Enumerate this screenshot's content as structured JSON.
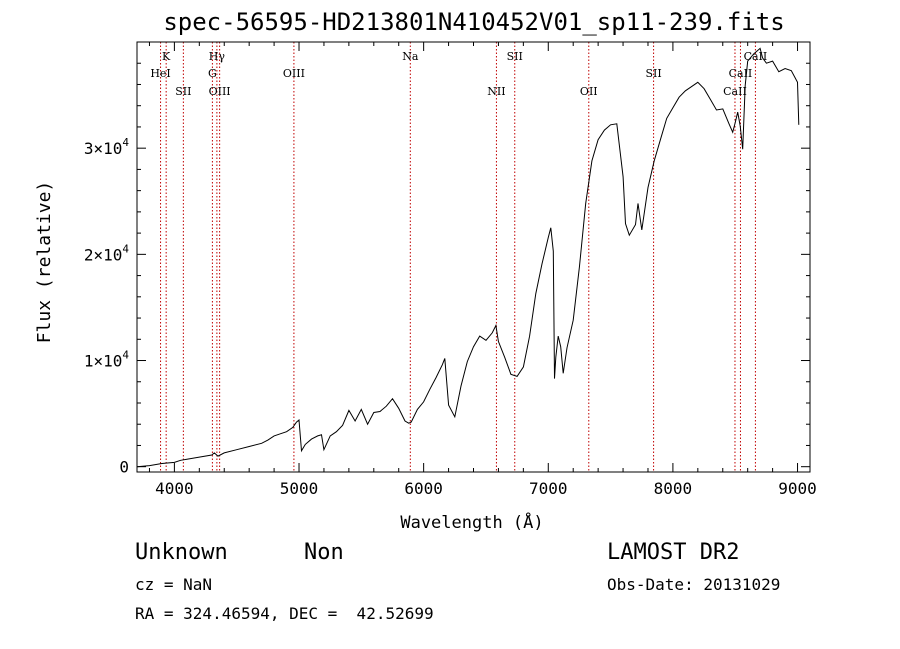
{
  "title": "spec-56595-HD213801N410452V01_sp11-239.fits",
  "info": {
    "classification": "Unknown",
    "subclass": "Non",
    "survey": "LAMOST DR2",
    "cz": "cz = NaN",
    "obs_date": "Obs-Date: 20131029",
    "coords": "RA = 324.46594, DEC =  42.52699"
  },
  "colors": {
    "spectrum": "#000000",
    "line_markers": "#c00000"
  },
  "chart_data": {
    "type": "line",
    "xlabel": "Wavelength (Å)",
    "ylabel": "Flux (relative)",
    "xlim": [
      3700,
      9100
    ],
    "ylim": [
      -500,
      40000
    ],
    "xticks": [
      4000,
      5000,
      6000,
      7000,
      8000,
      9000
    ],
    "xtick_labels": [
      "4000",
      "5000",
      "6000",
      "7000",
      "8000",
      "9000"
    ],
    "yticks": [
      0,
      10000,
      20000,
      30000
    ],
    "ytick_labels": [
      {
        "base": "0",
        "exp": ""
      },
      {
        "base": "1×10",
        "exp": "4"
      },
      {
        "base": "2×10",
        "exp": "4"
      },
      {
        "base": "3×10",
        "exp": "4"
      }
    ],
    "lines": [
      {
        "label": "K",
        "wl": 3934,
        "tier": 0
      },
      {
        "label": "HeI",
        "wl": 3889,
        "tier": 1
      },
      {
        "label": "SII",
        "wl": 4072,
        "tier": 2
      },
      {
        "label": "Hγ",
        "wl": 4341,
        "tier": 0
      },
      {
        "label": "G",
        "wl": 4305,
        "tier": 1
      },
      {
        "label": "OIII",
        "wl": 4363,
        "tier": 2
      },
      {
        "label": "OIII",
        "wl": 4959,
        "tier": 1
      },
      {
        "label": "Na",
        "wl": 5893,
        "tier": 0
      },
      {
        "label": "NII",
        "wl": 6584,
        "tier": 2
      },
      {
        "label": "SII",
        "wl": 6731,
        "tier": 0
      },
      {
        "label": "OII",
        "wl": 7325,
        "tier": 2
      },
      {
        "label": "SII",
        "wl": 7845,
        "tier": 1
      },
      {
        "label": "CaII",
        "wl": 8662,
        "tier": 0
      },
      {
        "label": "CaII",
        "wl": 8542,
        "tier": 1
      },
      {
        "label": "CaII",
        "wl": 8498,
        "tier": 2
      }
    ],
    "spectrum": {
      "x": [
        3700,
        3800,
        3900,
        4000,
        4050,
        4100,
        4200,
        4300,
        4320,
        4350,
        4400,
        4500,
        4600,
        4700,
        4750,
        4800,
        4850,
        4900,
        4950,
        4980,
        5000,
        5020,
        5050,
        5100,
        5150,
        5180,
        5200,
        5250,
        5300,
        5350,
        5400,
        5450,
        5500,
        5550,
        5600,
        5650,
        5700,
        5750,
        5800,
        5850,
        5880,
        5900,
        5950,
        6000,
        6050,
        6100,
        6150,
        6170,
        6200,
        6250,
        6300,
        6350,
        6400,
        6450,
        6500,
        6550,
        6580,
        6600,
        6650,
        6700,
        6750,
        6800,
        6850,
        6900,
        6950,
        7000,
        7020,
        7040,
        7050,
        7060,
        7080,
        7100,
        7120,
        7150,
        7200,
        7250,
        7300,
        7350,
        7400,
        7450,
        7500,
        7550,
        7600,
        7620,
        7650,
        7700,
        7720,
        7750,
        7800,
        7850,
        7900,
        7950,
        8000,
        8050,
        8100,
        8150,
        8200,
        8250,
        8300,
        8350,
        8400,
        8450,
        8480,
        8500,
        8520,
        8540,
        8560,
        8580,
        8600,
        8650,
        8700,
        8720,
        8750,
        8800,
        8850,
        8900,
        8950,
        9000,
        9010
      ],
      "y": [
        0,
        100,
        300,
        400,
        600,
        700,
        900,
        1100,
        1300,
        1000,
        1300,
        1600,
        1900,
        2200,
        2500,
        2900,
        3100,
        3300,
        3700,
        4200,
        4400,
        1500,
        2100,
        2600,
        2900,
        3000,
        1600,
        2900,
        3300,
        3900,
        5300,
        4300,
        5400,
        4000,
        5100,
        5200,
        5700,
        6400,
        5500,
        4300,
        4100,
        4200,
        5400,
        6100,
        7300,
        8400,
        9600,
        10200,
        5800,
        4700,
        7600,
        9900,
        11300,
        12300,
        11900,
        12600,
        13300,
        11800,
        10300,
        8700,
        8500,
        9400,
        12300,
        16300,
        19100,
        21600,
        22500,
        20300,
        8300,
        10300,
        12300,
        11300,
        8800,
        11200,
        13800,
        18800,
        24800,
        28800,
        30800,
        31700,
        32200,
        32300,
        27300,
        22900,
        21800,
        22800,
        24800,
        22300,
        26300,
        28800,
        30800,
        32800,
        33800,
        34800,
        35400,
        35800,
        36200,
        35600,
        34600,
        33600,
        33700,
        32300,
        31500,
        32400,
        33400,
        32100,
        29900,
        35900,
        38200,
        38900,
        39400,
        38500,
        38000,
        38200,
        37200,
        37500,
        37300,
        36200,
        32200
      ]
    }
  }
}
